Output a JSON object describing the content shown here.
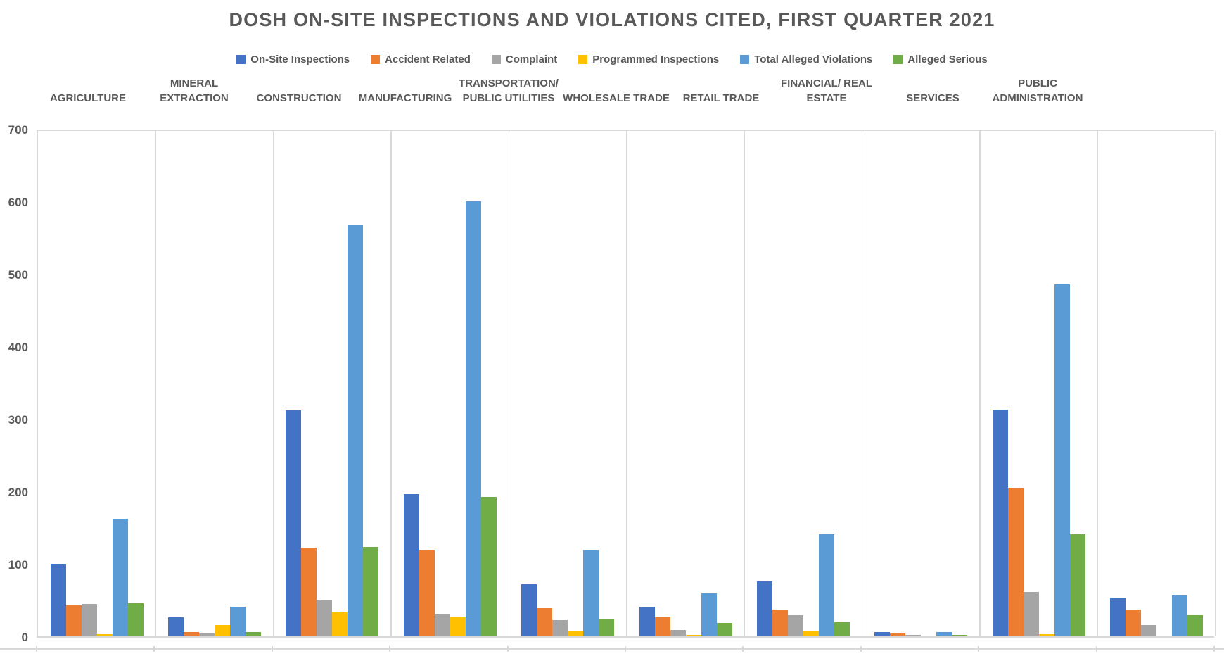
{
  "title": "DOSH ON-SITE INSPECTIONS AND VIOLATIONS CITED, FIRST QUARTER 2021",
  "colors": {
    "text": "#595959",
    "gridline": "#d9d9d9",
    "background": "#ffffff"
  },
  "chart_data": {
    "type": "bar",
    "title": "DOSH ON-SITE INSPECTIONS AND VIOLATIONS CITED, FIRST QUARTER 2021",
    "xlabel": "",
    "ylabel": "",
    "ylim": [
      0,
      700
    ],
    "ytick_labels": [
      "0",
      "100",
      "200",
      "300",
      "400",
      "500",
      "600",
      "700"
    ],
    "grid": "category-dividers-only",
    "legend_position": "top",
    "categories": [
      "AGRICULTURE",
      "MINERAL\nEXTRACTION",
      "CONSTRUCTION",
      "MANUFACTURING",
      "TRANSPORTATION/\nPUBLIC UTILITIES",
      "WHOLESALE TRADE",
      "RETAIL TRADE",
      "FINANCIAL/ REAL\nESTATE",
      "SERVICES",
      "PUBLIC\nADMINISTRATION"
    ],
    "series": [
      {
        "name": "On-Site  Inspections",
        "color": "#4472C4",
        "values": [
          100,
          26,
          312,
          196,
          72,
          41,
          76,
          6,
          313,
          53
        ]
      },
      {
        "name": "Accident Related",
        "color": "#ED7D31",
        "values": [
          43,
          6,
          122,
          119,
          39,
          26,
          37,
          4,
          205,
          37
        ]
      },
      {
        "name": "Complaint",
        "color": "#A5A5A5",
        "values": [
          45,
          4,
          50,
          30,
          22,
          9,
          29,
          2,
          61,
          16
        ]
      },
      {
        "name": "Programmed Inspections",
        "color": "#FFC000",
        "values": [
          3,
          16,
          33,
          26,
          8,
          2,
          8,
          0,
          3,
          0
        ]
      },
      {
        "name": "Total Alleged Violations",
        "color": "#5B9BD5",
        "values": [
          162,
          41,
          567,
          600,
          118,
          59,
          141,
          6,
          485,
          56
        ]
      },
      {
        "name": "Alleged Serious",
        "color": "#70AD47",
        "values": [
          46,
          6,
          123,
          192,
          23,
          18,
          19,
          2,
          141,
          29
        ]
      }
    ]
  }
}
